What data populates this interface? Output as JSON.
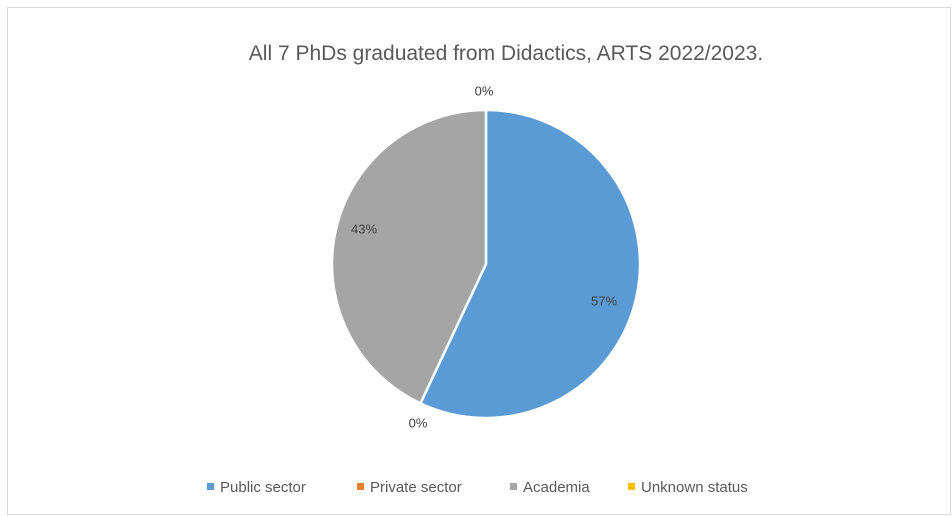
{
  "chart_data": {
    "type": "pie",
    "title": "All 7 PhDs graduated from Didactics, ARTS 2022/2023.",
    "categories": [
      "Public sector",
      "Private sector",
      "Academia",
      "Unknown status"
    ],
    "values": [
      57,
      0,
      43,
      0
    ],
    "value_labels": [
      "57%",
      "0%",
      "43%",
      "0%"
    ],
    "colors": [
      "#5B9BD5",
      "#ED7D31",
      "#A5A5A5",
      "#FFC000"
    ],
    "legend_position": "bottom"
  }
}
